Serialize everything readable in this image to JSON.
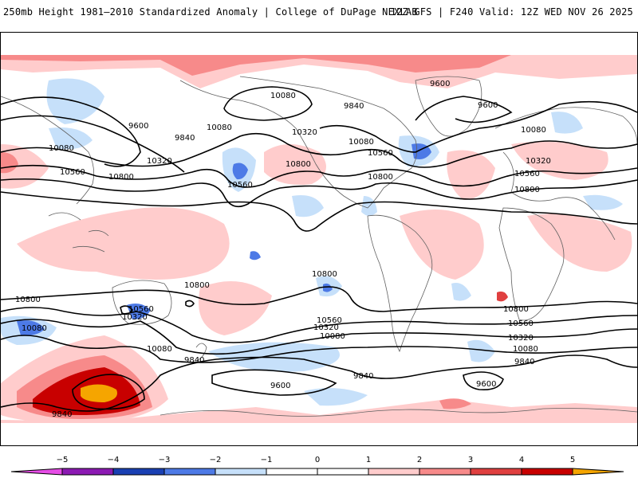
{
  "header": {
    "title_left": "250mb Height 1981–2010 Standardized Anomaly | College of DuPage NEXLAB",
    "title_right": "12Z GFS | F240 Valid: 12Z WED NOV 26 2025"
  },
  "colors": {
    "neg5": "#e64de6",
    "neg4": "#8c1ab3",
    "neg3": "#1a40b3",
    "neg2": "#4d7ae6",
    "neg1": "#c6e0fa",
    "zero": "#ffffff",
    "pos1": "#ffcccc",
    "pos2": "#f78a8a",
    "pos3": "#e04040",
    "pos4": "#c80000",
    "pos5": "#f5a500",
    "contour": "#000000",
    "coast": "#606060"
  },
  "map": {
    "contour_labels": [
      "10080",
      "9600",
      "9840",
      "10080",
      "10320",
      "10560",
      "10800",
      "10560",
      "10080",
      "9600",
      "9840",
      "10320",
      "10080",
      "10560",
      "10800",
      "10800",
      "9600",
      "9840",
      "10080",
      "10320",
      "10560",
      "10800",
      "10800",
      "10800",
      "10800",
      "10800",
      "10560",
      "10320",
      "10080",
      "10080",
      "9840",
      "9600",
      "10560",
      "10320",
      "10080",
      "9840",
      "9600",
      "10800",
      "10560",
      "10320",
      "10080",
      "9840",
      "9600",
      "10080",
      "9840"
    ]
  },
  "colorbar": {
    "tick_labels": [
      "−5",
      "−4",
      "−3",
      "−2",
      "−1",
      "0",
      "1",
      "2",
      "3",
      "4",
      "5"
    ]
  }
}
